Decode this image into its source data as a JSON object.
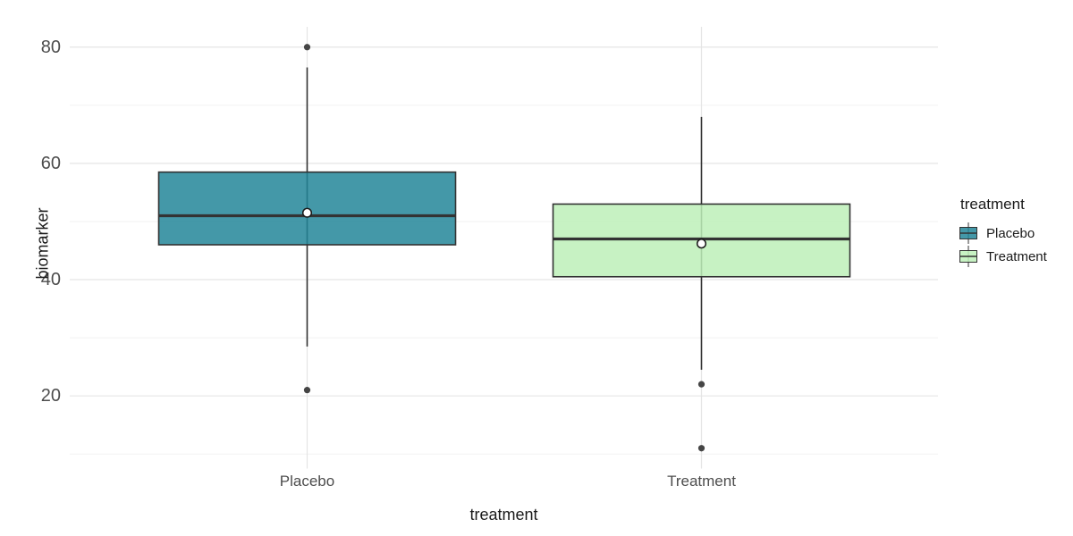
{
  "chart_data": {
    "type": "boxplot",
    "title": "",
    "xlabel": "treatment",
    "ylabel": "biomarker",
    "categories": [
      "Placebo",
      "Treatment"
    ],
    "y_ticks": [
      80,
      60,
      40,
      20
    ],
    "y_minor_ticks": [
      70,
      50,
      30,
      10
    ],
    "ylim": [
      7.5,
      83.5
    ],
    "grid": "on",
    "series": [
      {
        "name": "Placebo",
        "fill": "#238699",
        "fill_opacity": 0.85,
        "q1": 46,
        "median": 51,
        "q3": 58.5,
        "whisker_low": 28.5,
        "whisker_high": 76.5,
        "mean": 51.5,
        "outliers": [
          80,
          21
        ]
      },
      {
        "name": "Treatment",
        "fill": "#bdf0b8",
        "fill_opacity": 0.85,
        "q1": 40.5,
        "median": 47,
        "q3": 53,
        "whisker_low": 24.5,
        "whisker_high": 68,
        "mean": 46.2,
        "outliers": [
          22,
          11
        ]
      }
    ],
    "legend": {
      "title": "treatment",
      "entries": [
        "Placebo",
        "Treatment"
      ],
      "position": "right"
    },
    "style": {
      "background": "#ffffff",
      "grid_major_color": "#e5e5e5",
      "grid_minor_color": "#f2f2f2",
      "box_border_color": "#333333",
      "median_color": "#333333",
      "whisker_color": "#333333",
      "outlier_color": "#454545",
      "mean_fill": "#ffffff",
      "mean_stroke": "#1a1a1a",
      "tick_label_color": "#4d4d4d",
      "axis_title_color": "#1a1a1a"
    }
  }
}
